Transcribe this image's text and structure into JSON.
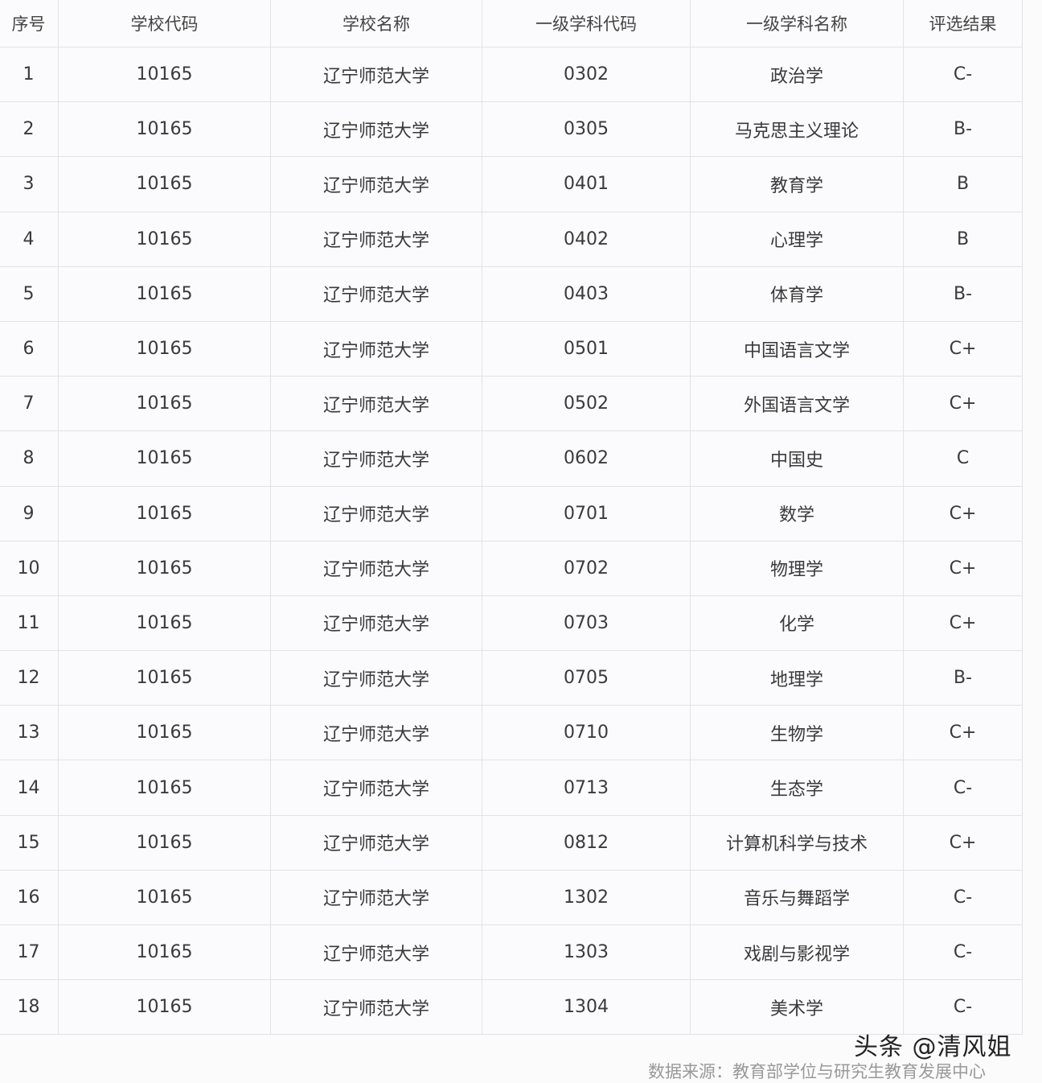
{
  "table": {
    "headers": [
      "序号",
      "学校代码",
      "学校名称",
      "一级学科代码",
      "一级学科名称",
      "评选结果"
    ],
    "rows": [
      [
        "1",
        "10165",
        "辽宁师范大学",
        "0302",
        "政治学",
        "C-"
      ],
      [
        "2",
        "10165",
        "辽宁师范大学",
        "0305",
        "马克思主义理论",
        "B-"
      ],
      [
        "3",
        "10165",
        "辽宁师范大学",
        "0401",
        "教育学",
        "B"
      ],
      [
        "4",
        "10165",
        "辽宁师范大学",
        "0402",
        "心理学",
        "B"
      ],
      [
        "5",
        "10165",
        "辽宁师范大学",
        "0403",
        "体育学",
        "B-"
      ],
      [
        "6",
        "10165",
        "辽宁师范大学",
        "0501",
        "中国语言文学",
        "C+"
      ],
      [
        "7",
        "10165",
        "辽宁师范大学",
        "0502",
        "外国语言文学",
        "C+"
      ],
      [
        "8",
        "10165",
        "辽宁师范大学",
        "0602",
        "中国史",
        "C"
      ],
      [
        "9",
        "10165",
        "辽宁师范大学",
        "0701",
        "数学",
        "C+"
      ],
      [
        "10",
        "10165",
        "辽宁师范大学",
        "0702",
        "物理学",
        "C+"
      ],
      [
        "11",
        "10165",
        "辽宁师范大学",
        "0703",
        "化学",
        "C+"
      ],
      [
        "12",
        "10165",
        "辽宁师范大学",
        "0705",
        "地理学",
        "B-"
      ],
      [
        "13",
        "10165",
        "辽宁师范大学",
        "0710",
        "生物学",
        "C+"
      ],
      [
        "14",
        "10165",
        "辽宁师范大学",
        "0713",
        "生态学",
        "C-"
      ],
      [
        "15",
        "10165",
        "辽宁师范大学",
        "0812",
        "计算机科学与技术",
        "C+"
      ],
      [
        "16",
        "10165",
        "辽宁师范大学",
        "1302",
        "音乐与舞蹈学",
        "C-"
      ],
      [
        "17",
        "10165",
        "辽宁师范大学",
        "1303",
        "戏剧与影视学",
        "C-"
      ],
      [
        "18",
        "10165",
        "辽宁师范大学",
        "1304",
        "美术学",
        "C-"
      ]
    ]
  },
  "watermark": "头条 @清风姐",
  "source": "数据来源：教育部学位与研究生教育发展中心"
}
